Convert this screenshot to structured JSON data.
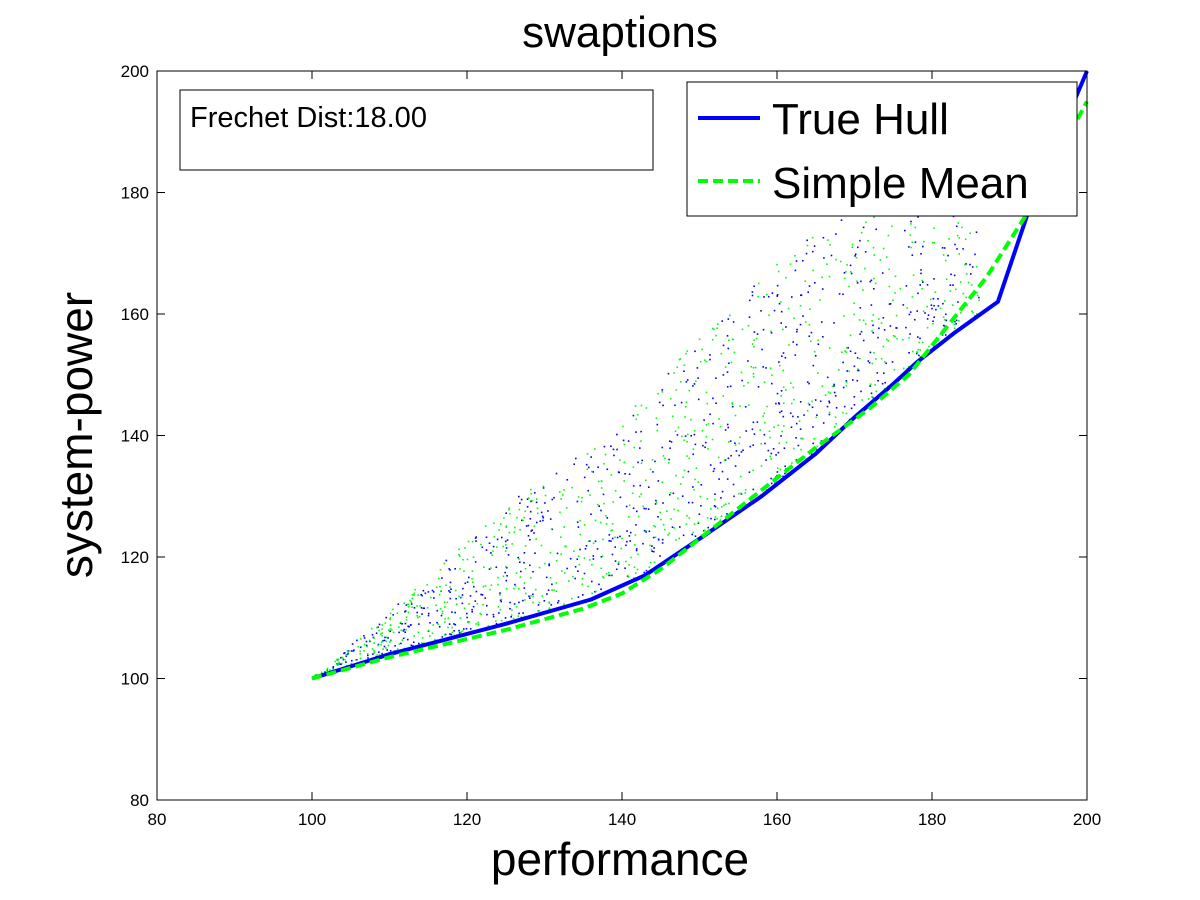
{
  "chart_data": {
    "type": "scatter",
    "title": "swaptions",
    "xlabel": "performance",
    "ylabel": "system-power",
    "xlim": [
      80,
      200
    ],
    "ylim": [
      80,
      200
    ],
    "xticks": [
      80,
      100,
      120,
      140,
      160,
      180,
      200
    ],
    "yticks": [
      80,
      100,
      120,
      140,
      160,
      180,
      200
    ],
    "grid": false,
    "legend_position": "top-right",
    "annotation": "Frechet Dist:18.00",
    "series": [
      {
        "name": "True Hull",
        "kind": "line",
        "style": "solid",
        "color": "#0000ff",
        "x": [
          100,
          110,
          125,
          136,
          143,
          150,
          158,
          165,
          170,
          175,
          178,
          183,
          188.5,
          193,
          200
        ],
        "y": [
          100,
          104,
          109,
          113,
          117,
          123,
          130,
          137,
          143,
          148.5,
          152,
          157,
          162,
          179,
          200
        ]
      },
      {
        "name": "Simple Mean",
        "kind": "line",
        "style": "dashed",
        "color": "#00ff00",
        "x": [
          100,
          110,
          125,
          135,
          140,
          145,
          150,
          158,
          165,
          172,
          177,
          182,
          187,
          192,
          200
        ],
        "y": [
          100,
          103.5,
          108,
          111.5,
          114,
          118,
          123,
          131,
          138,
          144.5,
          150,
          158,
          166,
          176,
          195
        ]
      }
    ],
    "scatter_clouds": [
      {
        "color": "#0000ff",
        "source": "True Hull samples"
      },
      {
        "color": "#00ff00",
        "source": "Simple Mean samples"
      }
    ]
  }
}
